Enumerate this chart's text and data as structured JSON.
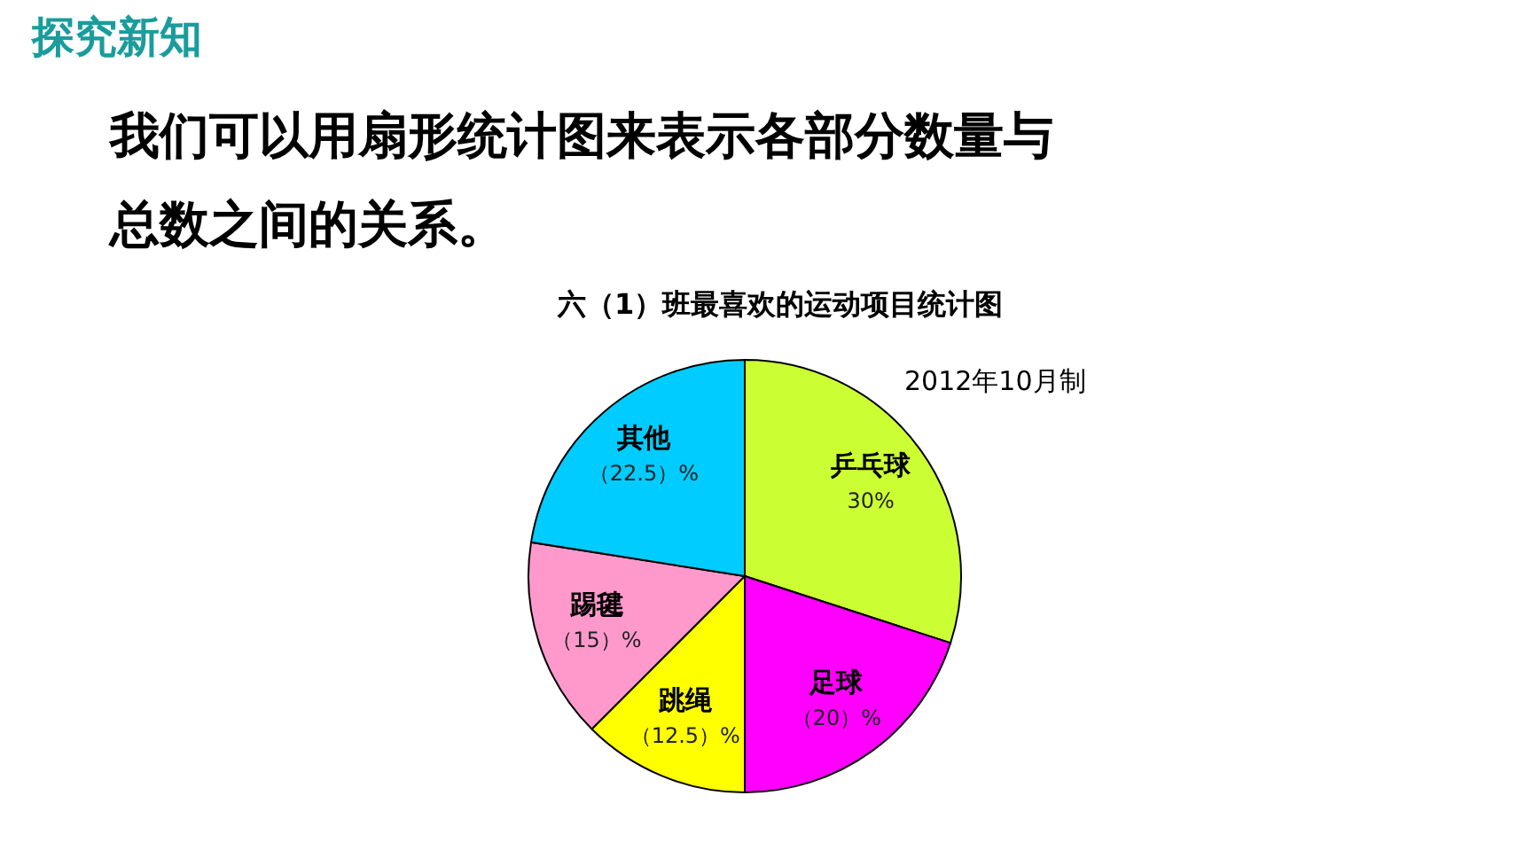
{
  "chart_data": {
    "type": "pie",
    "title": "六（1）班最喜欢的运动项目统计图",
    "subtitle": "2012年10月制",
    "annotations": [
      "探究新知",
      "我们可以用扇形统计图来表示各部分数量与",
      "总数之间的关系。"
    ],
    "categories": [
      "乒乓球",
      "足球",
      "跳绳",
      "踢毽",
      "其他"
    ],
    "values": [
      30,
      20,
      12.5,
      15,
      22.5
    ],
    "colors": [
      "#ccff33",
      "#ff00ff",
      "#ffff00",
      "#ff99cc",
      "#00ccff"
    ],
    "value_labels": [
      "30%",
      "（20）%",
      "（12.5）%",
      "（15）%",
      "（22.5）%"
    ]
  }
}
